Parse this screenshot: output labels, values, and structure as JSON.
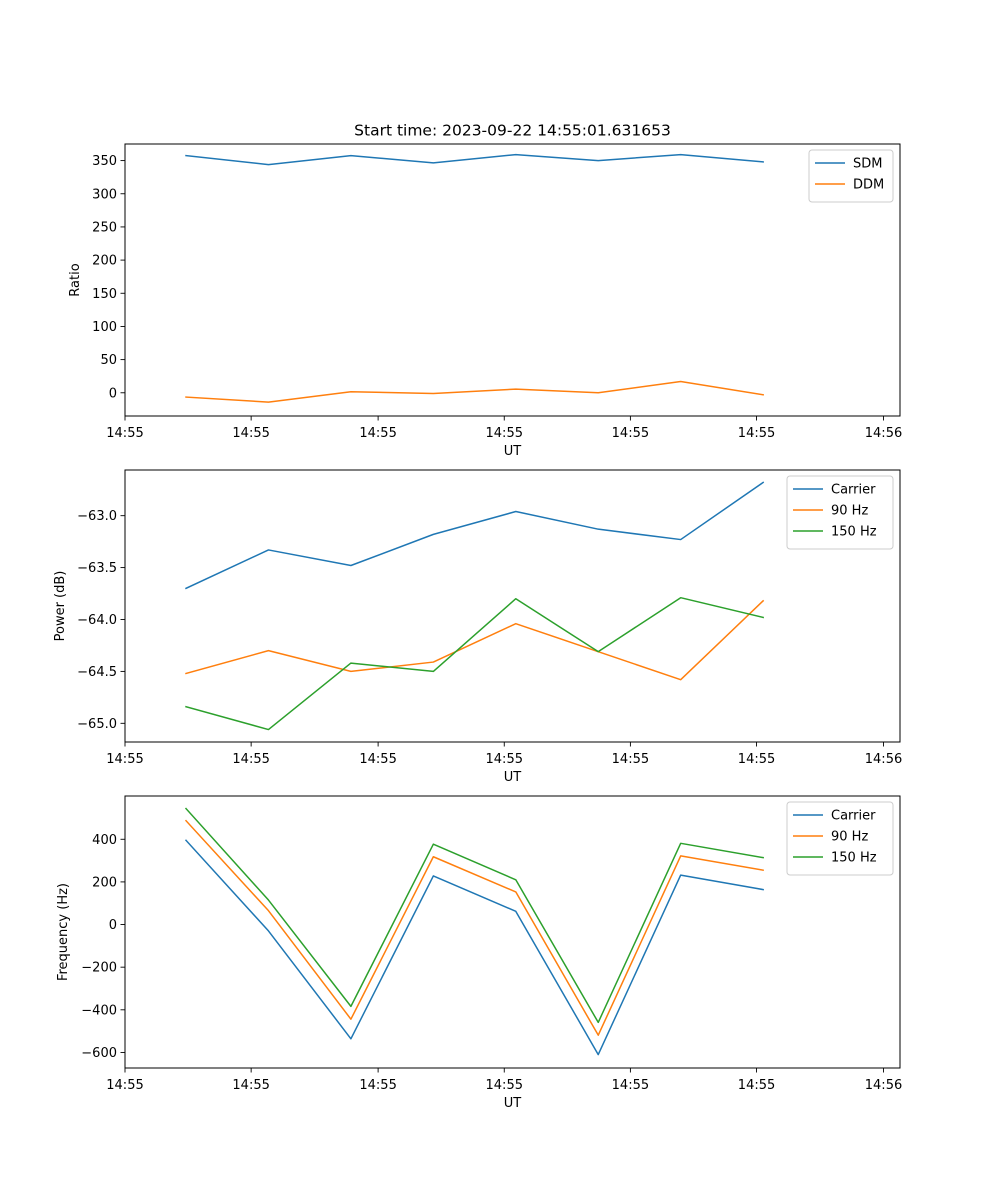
{
  "figure_title": "Start time: 2023-09-22 14:55:01.631653",
  "chart_data": [
    {
      "type": "line",
      "title": "Start time: 2023-09-22 14:55:01.631653",
      "xlabel": "UT",
      "ylabel": "Ratio",
      "x": [
        1,
        2,
        3,
        4,
        5,
        6,
        7,
        8
      ],
      "xlim": [
        0.26,
        9.66
      ],
      "x_ticks": [
        0.26,
        1.79,
        3.33,
        4.86,
        6.39,
        7.92,
        9.46
      ],
      "x_tick_labels": [
        "14:55",
        "14:55",
        "14:55",
        "14:55",
        "14:55",
        "14:55",
        "14:56"
      ],
      "ylim": [
        -35,
        375
      ],
      "y_ticks": [
        0,
        50,
        100,
        150,
        200,
        250,
        300,
        350
      ],
      "y_tick_labels": [
        "0",
        "50",
        "100",
        "150",
        "200",
        "250",
        "300",
        "350"
      ],
      "legend_position": "top-right",
      "grid": false,
      "series": [
        {
          "name": "SDM",
          "color": "#1f77b4",
          "values": [
            357.5,
            344,
            357.5,
            346.5,
            359,
            350,
            359,
            348
          ]
        },
        {
          "name": "DDM",
          "color": "#ff7f0e",
          "values": [
            -6.5,
            -14,
            1.5,
            -1,
            5.5,
            0,
            17,
            -3
          ]
        }
      ]
    },
    {
      "type": "line",
      "title": "",
      "xlabel": "UT",
      "ylabel": "Power (dB)",
      "x": [
        1,
        2,
        3,
        4,
        5,
        6,
        7,
        8
      ],
      "xlim": [
        0.26,
        9.66
      ],
      "x_ticks": [
        0.26,
        1.79,
        3.33,
        4.86,
        6.39,
        7.92,
        9.46
      ],
      "x_tick_labels": [
        "14:55",
        "14:55",
        "14:55",
        "14:55",
        "14:55",
        "14:55",
        "14:56"
      ],
      "ylim": [
        -65.18,
        -62.56
      ],
      "y_ticks": [
        -65.0,
        -64.5,
        -64.0,
        -63.5,
        -63.0
      ],
      "y_tick_labels": [
        "−65.0",
        "−64.5",
        "−64.0",
        "−63.5",
        "−63.0"
      ],
      "legend_position": "top-right",
      "grid": false,
      "series": [
        {
          "name": "Carrier",
          "color": "#1f77b4",
          "values": [
            -63.7,
            -63.33,
            -63.48,
            -63.18,
            -62.96,
            -63.13,
            -63.23,
            -62.68
          ]
        },
        {
          "name": "90 Hz",
          "color": "#ff7f0e",
          "values": [
            -64.52,
            -64.3,
            -64.5,
            -64.41,
            -64.04,
            -64.31,
            -64.58,
            -63.82
          ]
        },
        {
          "name": "150 Hz",
          "color": "#2ca02c",
          "values": [
            -64.84,
            -65.06,
            -64.42,
            -64.5,
            -63.8,
            -64.31,
            -63.79,
            -63.98
          ]
        }
      ]
    },
    {
      "type": "line",
      "title": "",
      "xlabel": "UT",
      "ylabel": "Frequency (Hz)",
      "x": [
        1,
        2,
        3,
        4,
        5,
        6,
        7,
        8
      ],
      "xlim": [
        0.26,
        9.66
      ],
      "x_ticks": [
        0.26,
        1.79,
        3.33,
        4.86,
        6.39,
        7.92,
        9.46
      ],
      "x_tick_labels": [
        "14:55",
        "14:55",
        "14:55",
        "14:55",
        "14:55",
        "14:55",
        "14:56"
      ],
      "ylim": [
        -673,
        603
      ],
      "y_ticks": [
        -600,
        -400,
        -200,
        0,
        200,
        400
      ],
      "y_tick_labels": [
        "−600",
        "−400",
        "−200",
        "0",
        "200",
        "400"
      ],
      "legend_position": "top-right",
      "grid": false,
      "series": [
        {
          "name": "Carrier",
          "color": "#1f77b4",
          "values": [
            395,
            -30,
            -536,
            228,
            62,
            -610,
            232,
            164
          ]
        },
        {
          "name": "90 Hz",
          "color": "#ff7f0e",
          "values": [
            487,
            65,
            -444,
            318,
            153,
            -519,
            322,
            255
          ]
        },
        {
          "name": "150 Hz",
          "color": "#2ca02c",
          "values": [
            544,
            115,
            -384,
            377,
            210,
            -459,
            381,
            314
          ]
        }
      ]
    }
  ]
}
